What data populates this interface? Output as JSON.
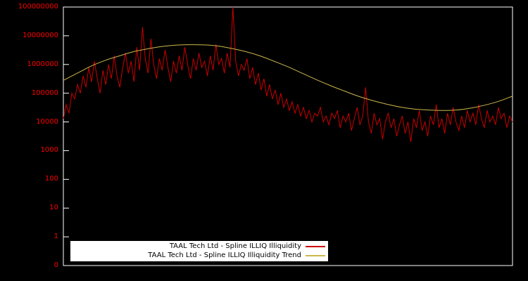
{
  "chart_data": {
    "type": "line",
    "title": "",
    "background": "#000000",
    "plot_border_color": "#ffffff",
    "grid": false,
    "legend_position": "bottom-center",
    "axis": {
      "scale": "log",
      "ylim": [
        1,
        100000000
      ],
      "xlabel": "",
      "ylabel": "",
      "x_labels_visible": false,
      "tick_color": "#ff0000",
      "yticks": [
        "100000000",
        "10000000",
        "1000000",
        "100000",
        "10000",
        "1000",
        "100",
        "10",
        "1",
        "0"
      ]
    },
    "series": [
      {
        "name": "TAAL Tech Ltd - Spline ILLIQ Illiquidity",
        "color": "#cc0000",
        "smooth": false,
        "values": [
          13000,
          40000,
          20000,
          100000,
          63000,
          200000,
          100000,
          400000,
          160000,
          790000,
          250000,
          1300000,
          320000,
          100000,
          630000,
          200000,
          1000000,
          320000,
          2000000,
          400000,
          160000,
          790000,
          2500000,
          500000,
          1300000,
          250000,
          4000000,
          630000,
          20000000,
          1600000,
          500000,
          7900000,
          1000000,
          320000,
          1600000,
          630000,
          3200000,
          790000,
          250000,
          1300000,
          500000,
          2000000,
          630000,
          4000000,
          1000000,
          320000,
          1600000,
          630000,
          2500000,
          790000,
          1300000,
          400000,
          2000000,
          630000,
          5000000,
          1000000,
          1600000,
          500000,
          2500000,
          790000,
          100000000,
          1300000,
          400000,
          1000000,
          630000,
          1600000,
          320000,
          790000,
          200000,
          500000,
          130000,
          320000,
          79000,
          200000,
          63000,
          130000,
          40000,
          100000,
          32000,
          63000,
          25000,
          50000,
          20000,
          40000,
          16000,
          32000,
          13000,
          25000,
          10000,
          20000,
          16000,
          32000,
          10000,
          16000,
          7900,
          20000,
          13000,
          25000,
          6300,
          16000,
          10000,
          20000,
          5000,
          13000,
          32000,
          7900,
          16000,
          160000,
          10000,
          4000,
          20000,
          7900,
          13000,
          2500,
          10000,
          20000,
          6300,
          13000,
          3200,
          7900,
          16000,
          4000,
          10000,
          2000,
          13000,
          6300,
          25000,
          5000,
          10000,
          3200,
          16000,
          7900,
          40000,
          6300,
          13000,
          4000,
          20000,
          7900,
          32000,
          10000,
          5000,
          16000,
          6300,
          25000,
          10000,
          20000,
          7900,
          40000,
          13000,
          6300,
          25000,
          10000,
          16000,
          7900,
          32000,
          13000,
          20000,
          6300,
          16000,
          10000
        ]
      },
      {
        "name": "TAAL Tech Ltd - Spline ILLIQ Illiquidity Trend",
        "color": "#cdb74b",
        "smooth": true,
        "values": [
          280000,
          500000,
          890000,
          1400000,
          2000000,
          2800000,
          3500000,
          4200000,
          4700000,
          4900000,
          4800000,
          4400000,
          3600000,
          2800000,
          2000000,
          1300000,
          830000,
          500000,
          300000,
          186000,
          120000,
          79000,
          56000,
          42000,
          33000,
          28000,
          26000,
          25000,
          26000,
          30000,
          38000,
          52000,
          79000
        ]
      }
    ]
  }
}
